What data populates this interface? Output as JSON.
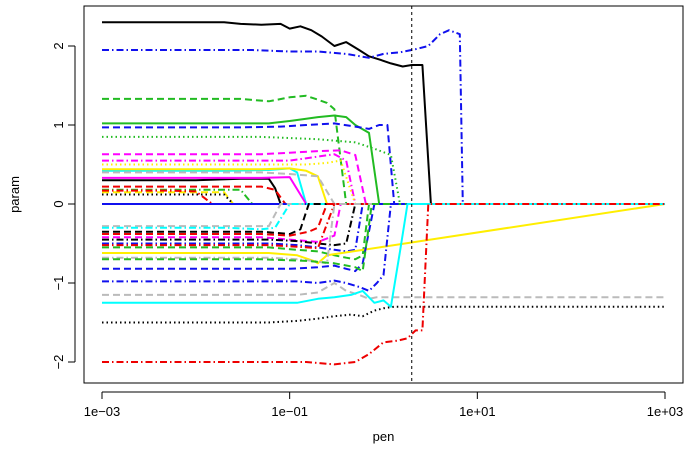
{
  "chart_data": {
    "type": "line",
    "title": "",
    "xlabel": "pen",
    "ylabel": "param",
    "x_scale": "log10",
    "xlim": [
      0.001,
      1000
    ],
    "ylim": [
      -2.2,
      2.45
    ],
    "x_ticks": [
      0.001,
      0.1,
      10,
      1000
    ],
    "x_tick_labels": [
      "1e−03",
      "1e−01",
      "1e+01",
      "1e+03"
    ],
    "y_ticks": [
      -2,
      -1,
      0,
      1,
      2
    ],
    "y_tick_labels": [
      "−2",
      "−1",
      "0",
      "1",
      "2"
    ],
    "grid": false,
    "legend": "none",
    "reference_line": {
      "x": 2.0,
      "style": "dotted",
      "color": "#000000"
    },
    "series": [
      {
        "color": "#000000",
        "dash": "solid",
        "x": [
          0.001,
          0.003,
          0.01,
          0.02,
          0.03,
          0.05,
          0.08,
          0.1,
          0.13,
          0.17,
          0.22,
          0.3,
          0.4,
          0.55,
          0.7,
          0.9,
          1.2,
          1.6,
          2.0,
          2.6,
          3.2,
          3.4,
          1000
        ],
        "y": [
          2.3,
          2.3,
          2.3,
          2.3,
          2.28,
          2.27,
          2.28,
          2.22,
          2.25,
          2.2,
          2.12,
          2.0,
          2.05,
          1.95,
          1.87,
          1.83,
          1.78,
          1.74,
          1.76,
          1.76,
          0.0,
          0.0,
          0.0
        ]
      },
      {
        "color": "#1010ee",
        "dash": "dashdot",
        "x": [
          0.001,
          0.01,
          0.04,
          0.1,
          0.2,
          0.4,
          0.7,
          1.0,
          1.5,
          2.2,
          3.0,
          4.0,
          5.0,
          6.5,
          7.0,
          1000
        ],
        "y": [
          1.95,
          1.95,
          1.95,
          1.93,
          1.93,
          1.9,
          1.85,
          1.9,
          1.92,
          1.96,
          2.0,
          2.15,
          2.2,
          2.15,
          0.0,
          0.0
        ]
      },
      {
        "color": "#22bb22",
        "dash": "dashed",
        "x": [
          0.001,
          0.01,
          0.03,
          0.06,
          0.1,
          0.15,
          0.2,
          0.25,
          0.3,
          0.4,
          0.5,
          1000
        ],
        "y": [
          1.33,
          1.33,
          1.33,
          1.3,
          1.35,
          1.37,
          1.32,
          1.28,
          1.2,
          0.0,
          0.0,
          0.0
        ]
      },
      {
        "color": "#22bb22",
        "dash": "solid",
        "x": [
          0.001,
          0.01,
          0.03,
          0.06,
          0.1,
          0.15,
          0.2,
          0.3,
          0.4,
          0.5,
          0.7,
          0.9,
          1.0,
          1000
        ],
        "y": [
          1.02,
          1.02,
          1.02,
          1.02,
          1.05,
          1.08,
          1.1,
          1.12,
          1.1,
          1.0,
          0.9,
          0.0,
          0.0,
          0.0
        ]
      },
      {
        "color": "#1010ee",
        "dash": "dashed",
        "x": [
          0.001,
          0.01,
          0.03,
          0.08,
          0.15,
          0.3,
          0.5,
          0.7,
          0.9,
          1.1,
          1.3,
          1.5,
          1000
        ],
        "y": [
          0.97,
          0.97,
          0.97,
          0.98,
          1.0,
          1.02,
          0.98,
          0.95,
          1.0,
          1.0,
          0.0,
          0.0,
          0.0
        ]
      },
      {
        "color": "#22bb22",
        "dash": "dotted",
        "x": [
          0.001,
          0.05,
          0.2,
          0.5,
          0.8,
          1.2,
          1.5,
          1000
        ],
        "y": [
          0.85,
          0.85,
          0.82,
          0.78,
          0.7,
          0.62,
          0.0,
          0.0
        ]
      },
      {
        "color": "#ff00ff",
        "dash": "dashed",
        "x": [
          0.001,
          0.01,
          0.05,
          0.1,
          0.2,
          0.35,
          0.5,
          0.65,
          1000
        ],
        "y": [
          0.63,
          0.63,
          0.63,
          0.65,
          0.67,
          0.68,
          0.62,
          0.0,
          0.0
        ]
      },
      {
        "color": "#ff00ff",
        "dash": "dashdot",
        "x": [
          0.001,
          0.05,
          0.1,
          0.2,
          0.3,
          0.4,
          0.5,
          1000
        ],
        "y": [
          0.55,
          0.55,
          0.55,
          0.6,
          0.63,
          0.55,
          0.0,
          0.0
        ]
      },
      {
        "color": "#ffee00",
        "dash": "dotted",
        "x": [
          0.001,
          0.05,
          0.15,
          0.25,
          0.35,
          0.5,
          1000
        ],
        "y": [
          0.5,
          0.5,
          0.5,
          0.52,
          0.55,
          0.0,
          0.0
        ]
      },
      {
        "color": "#00ffff",
        "dash": "solid",
        "x": [
          0.001,
          0.02,
          0.06,
          0.1,
          0.12,
          0.15,
          0.2,
          1000
        ],
        "y": [
          0.42,
          0.42,
          0.43,
          0.45,
          0.4,
          0.0,
          0.0,
          0.0
        ]
      },
      {
        "color": "#ffee00",
        "dash": "solid",
        "x": [
          0.001,
          0.02,
          0.05,
          0.1,
          0.15,
          0.2,
          0.25,
          1000
        ],
        "y": [
          0.44,
          0.44,
          0.44,
          0.45,
          0.42,
          0.35,
          0.0,
          0.0
        ]
      },
      {
        "color": "#bbbbbb",
        "dash": "dashed",
        "x": [
          0.001,
          0.02,
          0.05,
          0.1,
          0.2,
          0.3,
          1000
        ],
        "y": [
          0.4,
          0.4,
          0.4,
          0.38,
          0.35,
          0.0,
          0.0
        ]
      },
      {
        "color": "#000000",
        "dash": "solid",
        "x": [
          0.001,
          0.01,
          0.03,
          0.06,
          0.07,
          0.08,
          1000
        ],
        "y": [
          0.3,
          0.3,
          0.32,
          0.32,
          0.2,
          0.0,
          0.0
        ]
      },
      {
        "color": "#ff00ff",
        "dash": "solid",
        "x": [
          0.001,
          0.02,
          0.05,
          0.1,
          0.15,
          1000
        ],
        "y": [
          0.33,
          0.33,
          0.33,
          0.34,
          0.0,
          0.0
        ]
      },
      {
        "color": "#ee0000",
        "dash": "dashed",
        "x": [
          0.001,
          0.01,
          0.03,
          0.05,
          0.07,
          0.09,
          1000
        ],
        "y": [
          0.22,
          0.22,
          0.22,
          0.22,
          0.18,
          0.0,
          0.0
        ]
      },
      {
        "color": "#22bb22",
        "dash": "dashdot",
        "x": [
          0.001,
          0.01,
          0.02,
          0.03,
          0.04,
          1000
        ],
        "y": [
          0.18,
          0.18,
          0.18,
          0.18,
          0.0,
          0.0
        ]
      },
      {
        "color": "#ffee00",
        "dash": "dashed",
        "x": [
          0.001,
          0.01,
          0.02,
          0.025,
          1000
        ],
        "y": [
          0.15,
          0.15,
          0.15,
          0.0,
          0.0
        ]
      },
      {
        "color": "#ee0000",
        "dash": "dashdot",
        "x": [
          0.001,
          0.005,
          0.01,
          0.015,
          1000
        ],
        "y": [
          0.17,
          0.17,
          0.16,
          0.0,
          0.0
        ]
      },
      {
        "color": "#000000",
        "dash": "dotted",
        "x": [
          0.001,
          0.01,
          0.02,
          0.025,
          1000
        ],
        "y": [
          0.12,
          0.12,
          0.12,
          0.0,
          0.0
        ]
      },
      {
        "color": "#1010ee",
        "dash": "solid",
        "x": [
          0.001,
          1000
        ],
        "y": [
          0.0,
          0.0
        ]
      },
      {
        "color": "#bbbbbb",
        "dash": "dashed",
        "x": [
          0.001,
          0.01,
          0.03,
          0.06,
          0.08,
          1000
        ],
        "y": [
          -0.28,
          -0.28,
          -0.28,
          -0.28,
          0.0,
          0.0
        ]
      },
      {
        "color": "#00ffff",
        "dash": "dashdot",
        "x": [
          0.001,
          0.02,
          0.05,
          0.07,
          0.1,
          1000
        ],
        "y": [
          -0.3,
          -0.3,
          -0.32,
          -0.3,
          0.0,
          0.0
        ]
      },
      {
        "color": "#000000",
        "dash": "dashed",
        "x": [
          0.001,
          0.02,
          0.05,
          0.1,
          0.13,
          0.16,
          1000
        ],
        "y": [
          -0.35,
          -0.35,
          -0.35,
          -0.38,
          -0.32,
          0.0,
          0.0
        ]
      },
      {
        "color": "#ee0000",
        "dash": "dashed",
        "x": [
          0.001,
          0.02,
          0.05,
          0.1,
          0.16,
          0.2,
          0.25,
          1000
        ],
        "y": [
          -0.38,
          -0.38,
          -0.38,
          -0.4,
          -0.35,
          -0.3,
          0.0,
          0.0
        ]
      },
      {
        "color": "#ff00ff",
        "dash": "dashed",
        "x": [
          0.001,
          0.02,
          0.05,
          0.1,
          0.2,
          0.3,
          0.35,
          1000
        ],
        "y": [
          -0.42,
          -0.42,
          -0.42,
          -0.45,
          -0.48,
          -0.4,
          0.0,
          0.0
        ]
      },
      {
        "color": "#000000",
        "dash": "dashdot",
        "x": [
          0.001,
          0.02,
          0.06,
          0.12,
          0.2,
          0.3,
          0.4,
          0.5,
          1000
        ],
        "y": [
          -0.45,
          -0.45,
          -0.45,
          -0.47,
          -0.5,
          -0.52,
          -0.5,
          0.0,
          0.0
        ]
      },
      {
        "color": "#1010ee",
        "dash": "dashdot",
        "x": [
          0.001,
          0.02,
          0.06,
          0.12,
          0.2,
          0.3,
          0.4,
          0.5,
          0.6,
          1000
        ],
        "y": [
          -0.5,
          -0.5,
          -0.5,
          -0.52,
          -0.55,
          -0.58,
          -0.6,
          -0.58,
          0.0,
          0.0
        ]
      },
      {
        "color": "#ee0000",
        "dash": "dashdot",
        "x": [
          0.001,
          0.02,
          0.06,
          0.12,
          0.2,
          0.3,
          1000
        ],
        "y": [
          -0.52,
          -0.52,
          -0.52,
          -0.54,
          -0.56,
          0.0,
          0.0
        ]
      },
      {
        "color": "#22bb22",
        "dash": "dashed",
        "x": [
          0.001,
          0.02,
          0.06,
          0.12,
          0.2,
          0.3,
          0.4,
          0.5,
          0.6,
          0.7,
          1000
        ],
        "y": [
          -0.55,
          -0.55,
          -0.55,
          -0.58,
          -0.6,
          -0.65,
          -0.68,
          -0.7,
          -0.65,
          0.0,
          0.0
        ]
      },
      {
        "color": "#ffee00",
        "dash": "solid",
        "x": [
          0.001,
          0.02,
          0.06,
          0.12,
          0.18,
          0.2,
          0.25,
          1000
        ],
        "y": [
          -0.62,
          -0.62,
          -0.62,
          -0.65,
          -0.72,
          -0.75,
          -0.65,
          0.0
        ]
      },
      {
        "color": "#bbbbbb",
        "dash": "dashdot",
        "x": [
          0.001,
          0.02,
          0.06,
          0.12,
          0.18,
          0.25,
          0.3,
          1000
        ],
        "y": [
          -0.68,
          -0.68,
          -0.68,
          -0.7,
          -0.72,
          -0.75,
          0.0,
          0.0
        ]
      },
      {
        "color": "#1010ee",
        "dash": "dashed",
        "x": [
          0.001,
          0.02,
          0.06,
          0.1,
          0.2,
          0.3,
          0.4,
          0.5,
          0.6,
          0.8,
          1000
        ],
        "y": [
          -0.82,
          -0.82,
          -0.82,
          -0.82,
          -0.8,
          -0.78,
          -0.82,
          -0.85,
          -0.75,
          0.0,
          0.0
        ]
      },
      {
        "color": "#22bb22",
        "dash": "dashed",
        "x": [
          0.001,
          0.05,
          0.15,
          0.3,
          0.5,
          0.6,
          0.75,
          1000
        ],
        "y": [
          -0.7,
          -0.7,
          -0.72,
          -0.75,
          -0.8,
          -0.85,
          0.0,
          0.0
        ]
      },
      {
        "color": "#1010ee",
        "dash": "dashdot",
        "x": [
          0.001,
          0.02,
          0.06,
          0.12,
          0.2,
          0.3,
          0.4,
          0.55,
          0.7,
          0.85,
          1.0,
          1.2,
          1000
        ],
        "y": [
          -0.98,
          -0.98,
          -0.98,
          -0.98,
          -1.0,
          -0.97,
          -1.0,
          -1.05,
          -1.1,
          -1.0,
          -0.9,
          0.0,
          0.0
        ]
      },
      {
        "color": "#bbbbbb",
        "dash": "dashed",
        "x": [
          0.001,
          0.02,
          0.06,
          0.12,
          0.2,
          0.3,
          0.4,
          0.55,
          0.7,
          0.85,
          1000
        ],
        "y": [
          -1.15,
          -1.15,
          -1.15,
          -1.15,
          -1.12,
          -1.0,
          -1.1,
          -1.15,
          -1.2,
          -1.18,
          -1.18
        ]
      },
      {
        "color": "#00ffff",
        "dash": "solid",
        "x": [
          0.001,
          0.02,
          0.06,
          0.12,
          0.2,
          0.3,
          0.45,
          0.6,
          0.8,
          1.0,
          1.2,
          1.5,
          1.8,
          1000
        ],
        "y": [
          -1.25,
          -1.25,
          -1.25,
          -1.25,
          -1.2,
          -1.18,
          -1.15,
          -1.1,
          -1.25,
          -1.22,
          -1.3,
          -0.6,
          0.0,
          0.0
        ]
      },
      {
        "color": "#000000",
        "dash": "dotted",
        "x": [
          0.001,
          0.02,
          0.06,
          0.12,
          0.2,
          0.3,
          0.45,
          0.6,
          0.8,
          1.0,
          1.3,
          1000
        ],
        "y": [
          -1.5,
          -1.5,
          -1.5,
          -1.48,
          -1.45,
          -1.42,
          -1.4,
          -1.42,
          -1.35,
          -1.32,
          -1.3,
          -1.3
        ]
      },
      {
        "color": "#ee0000",
        "dash": "dashdot",
        "x": [
          0.001,
          0.01,
          0.05,
          0.15,
          0.3,
          0.5,
          0.7,
          1.0,
          1.4,
          1.8,
          2.2,
          2.6,
          3.0,
          3.5,
          1000
        ],
        "y": [
          -2.0,
          -2.0,
          -2.0,
          -2.0,
          -2.03,
          -2.0,
          -1.9,
          -1.75,
          -1.73,
          -1.7,
          -1.6,
          -1.6,
          0.0,
          0.0,
          0.0
        ]
      }
    ]
  }
}
